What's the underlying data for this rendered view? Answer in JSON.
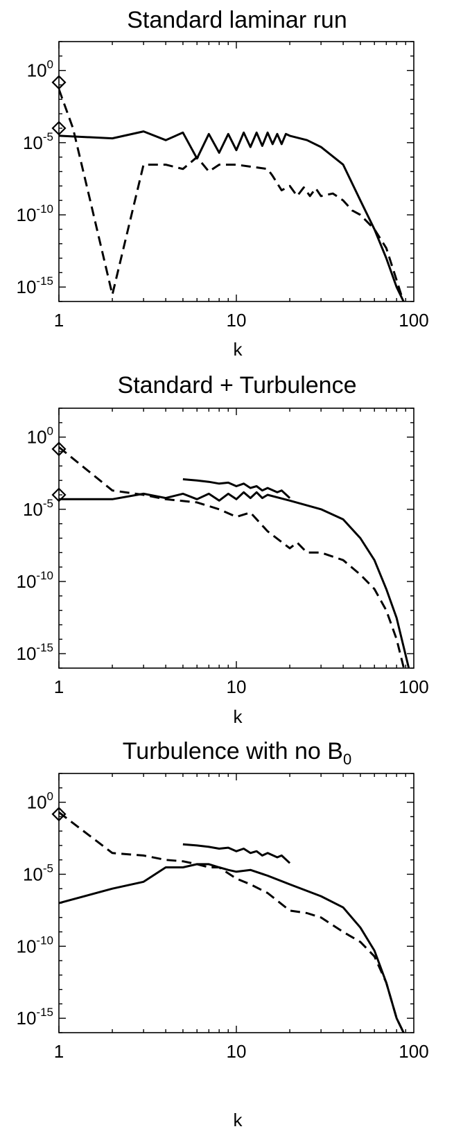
{
  "chart_data": [
    {
      "type": "line",
      "title": "Standard laminar run",
      "xlabel": "k",
      "ylabel": "",
      "x_scale": "log",
      "y_scale": "log",
      "xlim": [
        1,
        100
      ],
      "ylim": [
        1e-16,
        100.0
      ],
      "x_ticks": [
        {
          "v": 1,
          "label": "1"
        },
        {
          "v": 10,
          "label": "10"
        },
        {
          "v": 100,
          "label": "100"
        }
      ],
      "y_ticks": [
        {
          "v": 1,
          "base": "10",
          "exp": "0"
        },
        {
          "v": 1e-05,
          "base": "10",
          "exp": "-5"
        },
        {
          "v": 1e-10,
          "base": "10",
          "exp": "-10"
        },
        {
          "v": 1e-15,
          "base": "10",
          "exp": "-15"
        }
      ],
      "series": [
        {
          "style": "solid",
          "points": [
            [
              1,
              3e-05
            ],
            [
              2,
              2e-05
            ],
            [
              3,
              6e-05
            ],
            [
              4,
              1.5e-05
            ],
            [
              5,
              5e-05
            ],
            [
              6,
              8e-07
            ],
            [
              7,
              4e-05
            ],
            [
              8,
              2e-06
            ],
            [
              9,
              4e-05
            ],
            [
              10,
              3e-06
            ],
            [
              11,
              5e-05
            ],
            [
              12,
              5e-06
            ],
            [
              13,
              5e-05
            ],
            [
              14,
              6e-06
            ],
            [
              15,
              5e-05
            ],
            [
              16,
              8e-06
            ],
            [
              17,
              4e-05
            ],
            [
              18,
              8e-06
            ],
            [
              19,
              4e-05
            ],
            [
              20,
              3e-05
            ],
            [
              25,
              1.5e-05
            ],
            [
              30,
              5e-06
            ],
            [
              40,
              3e-07
            ],
            [
              50,
              1e-09
            ],
            [
              60,
              1e-11
            ],
            [
              70,
              1e-13
            ],
            [
              80,
              1e-15
            ],
            [
              90,
              5e-17
            ]
          ]
        },
        {
          "style": "dashed",
          "points": [
            [
              1,
              0.05
            ],
            [
              1.2,
              0.0001
            ],
            [
              1.5,
              1e-09
            ],
            [
              2,
              3e-16
            ],
            [
              3,
              3e-07
            ],
            [
              4,
              3e-07
            ],
            [
              5,
              1.5e-07
            ],
            [
              6,
              1e-06
            ],
            [
              7,
              1e-07
            ],
            [
              8,
              3e-07
            ],
            [
              10,
              3e-07
            ],
            [
              15,
              1.5e-07
            ],
            [
              16,
              5e-08
            ],
            [
              18,
              5e-09
            ],
            [
              20,
              1e-08
            ],
            [
              22,
              2e-09
            ],
            [
              24,
              8e-09
            ],
            [
              26,
              2e-09
            ],
            [
              28,
              7e-09
            ],
            [
              30,
              2e-09
            ],
            [
              35,
              3e-09
            ],
            [
              40,
              1e-09
            ],
            [
              45,
              2e-10
            ],
            [
              50,
              1e-10
            ],
            [
              60,
              1e-11
            ],
            [
              70,
              5e-13
            ],
            [
              80,
              3e-15
            ],
            [
              90,
              3e-17
            ]
          ]
        }
      ],
      "markers": [
        [
          1,
          0.15
        ],
        [
          1,
          0.0001
        ]
      ]
    },
    {
      "type": "line",
      "title": "Standard + Turbulence",
      "xlabel": "k",
      "ylabel": "",
      "x_scale": "log",
      "y_scale": "log",
      "xlim": [
        1,
        100
      ],
      "ylim": [
        1e-16,
        100.0
      ],
      "x_ticks": [
        {
          "v": 1,
          "label": "1"
        },
        {
          "v": 10,
          "label": "10"
        },
        {
          "v": 100,
          "label": "100"
        }
      ],
      "y_ticks": [
        {
          "v": 1,
          "base": "10",
          "exp": "0"
        },
        {
          "v": 1e-05,
          "base": "10",
          "exp": "-5"
        },
        {
          "v": 1e-10,
          "base": "10",
          "exp": "-10"
        },
        {
          "v": 1e-15,
          "base": "10",
          "exp": "-15"
        }
      ],
      "series": [
        {
          "style": "solid",
          "points": [
            [
              1,
              5e-05
            ],
            [
              2,
              5e-05
            ],
            [
              3,
              0.00012
            ],
            [
              4,
              6e-05
            ],
            [
              5,
              0.00012
            ],
            [
              6,
              5e-05
            ],
            [
              7,
              0.00012
            ],
            [
              8,
              4e-05
            ],
            [
              9,
              0.00012
            ],
            [
              10,
              5e-05
            ],
            [
              11,
              0.00015
            ],
            [
              12,
              6e-05
            ],
            [
              13,
              0.00015
            ],
            [
              14,
              6e-05
            ],
            [
              15,
              0.0001
            ],
            [
              20,
              4e-05
            ],
            [
              30,
              1e-05
            ],
            [
              40,
              2e-06
            ],
            [
              50,
              1e-07
            ],
            [
              60,
              3e-09
            ],
            [
              70,
              3e-11
            ],
            [
              80,
              3e-13
            ],
            [
              95,
              5e-17
            ]
          ]
        },
        {
          "style": "dashed",
          "points": [
            [
              1,
              0.2
            ],
            [
              2,
              0.0002
            ],
            [
              3,
              0.0001
            ],
            [
              4,
              5e-05
            ],
            [
              6,
              3e-05
            ],
            [
              8,
              1e-05
            ],
            [
              10,
              3e-06
            ],
            [
              12,
              6e-06
            ],
            [
              15,
              3e-07
            ],
            [
              20,
              2e-08
            ],
            [
              22,
              5e-08
            ],
            [
              25,
              1e-08
            ],
            [
              30,
              1e-08
            ],
            [
              40,
              3e-09
            ],
            [
              50,
              3e-10
            ],
            [
              60,
              3e-11
            ],
            [
              70,
              1e-12
            ],
            [
              80,
              1e-14
            ],
            [
              90,
              3e-17
            ]
          ]
        },
        {
          "style": "solid",
          "points": [
            [
              5,
              0.0012
            ],
            [
              6,
              0.001
            ],
            [
              7,
              0.0008
            ],
            [
              8,
              0.0006
            ],
            [
              9,
              0.0007
            ],
            [
              10,
              0.0004
            ],
            [
              11,
              0.0006
            ],
            [
              12,
              0.0003
            ],
            [
              13,
              0.0004
            ],
            [
              14,
              0.0002
            ],
            [
              15,
              0.0003
            ],
            [
              17,
              0.00015
            ],
            [
              18,
              0.0002
            ],
            [
              20,
              6e-05
            ]
          ]
        }
      ],
      "markers": [
        [
          1,
          0.15
        ],
        [
          1,
          0.0001
        ]
      ]
    },
    {
      "type": "line",
      "title": "Turbulence with no B",
      "title_sub": "0",
      "xlabel": "k",
      "ylabel": "",
      "x_scale": "log",
      "y_scale": "log",
      "xlim": [
        1,
        100
      ],
      "ylim": [
        1e-16,
        100.0
      ],
      "x_ticks": [
        {
          "v": 1,
          "label": "1"
        },
        {
          "v": 10,
          "label": "10"
        },
        {
          "v": 100,
          "label": "100"
        }
      ],
      "y_ticks": [
        {
          "v": 1,
          "base": "10",
          "exp": "0"
        },
        {
          "v": 1e-05,
          "base": "10",
          "exp": "-5"
        },
        {
          "v": 1e-10,
          "base": "10",
          "exp": "-10"
        },
        {
          "v": 1e-15,
          "base": "10",
          "exp": "-15"
        }
      ],
      "series": [
        {
          "style": "solid",
          "points": [
            [
              1,
              1e-07
            ],
            [
              2,
              1e-06
            ],
            [
              3,
              3e-06
            ],
            [
              4,
              3e-05
            ],
            [
              5,
              3e-05
            ],
            [
              6,
              5e-05
            ],
            [
              7,
              5e-05
            ],
            [
              8,
              3e-05
            ],
            [
              9,
              2e-05
            ],
            [
              10,
              1.5e-05
            ],
            [
              12,
              2e-05
            ],
            [
              15,
              8e-06
            ],
            [
              20,
              2e-06
            ],
            [
              30,
              3e-07
            ],
            [
              40,
              5e-08
            ],
            [
              50,
              2e-09
            ],
            [
              60,
              5e-11
            ],
            [
              70,
              3e-13
            ],
            [
              80,
              1e-15
            ],
            [
              90,
              5e-17
            ]
          ]
        },
        {
          "style": "dashed",
          "points": [
            [
              1,
              0.2
            ],
            [
              2,
              0.0003
            ],
            [
              3,
              0.0002
            ],
            [
              4,
              0.0001
            ],
            [
              5,
              8e-05
            ],
            [
              6,
              5e-05
            ],
            [
              7,
              3e-05
            ],
            [
              8,
              3e-05
            ],
            [
              10,
              5e-06
            ],
            [
              12,
              2e-06
            ],
            [
              15,
              5e-07
            ],
            [
              20,
              3e-08
            ],
            [
              25,
              2e-08
            ],
            [
              30,
              1e-08
            ],
            [
              40,
              1e-09
            ],
            [
              50,
              2e-10
            ],
            [
              60,
              2e-11
            ],
            [
              70,
              3e-13
            ],
            [
              80,
              1e-15
            ],
            [
              90,
              5e-17
            ]
          ]
        },
        {
          "style": "solid",
          "points": [
            [
              5,
              0.0012
            ],
            [
              6,
              0.001
            ],
            [
              7,
              0.0008
            ],
            [
              8,
              0.0006
            ],
            [
              9,
              0.0007
            ],
            [
              10,
              0.0004
            ],
            [
              11,
              0.0006
            ],
            [
              12,
              0.0003
            ],
            [
              13,
              0.0004
            ],
            [
              14,
              0.0002
            ],
            [
              15,
              0.0003
            ],
            [
              17,
              0.00015
            ],
            [
              18,
              0.0002
            ],
            [
              20,
              6e-05
            ]
          ]
        }
      ],
      "markers": [
        [
          1,
          0.15
        ]
      ]
    }
  ]
}
